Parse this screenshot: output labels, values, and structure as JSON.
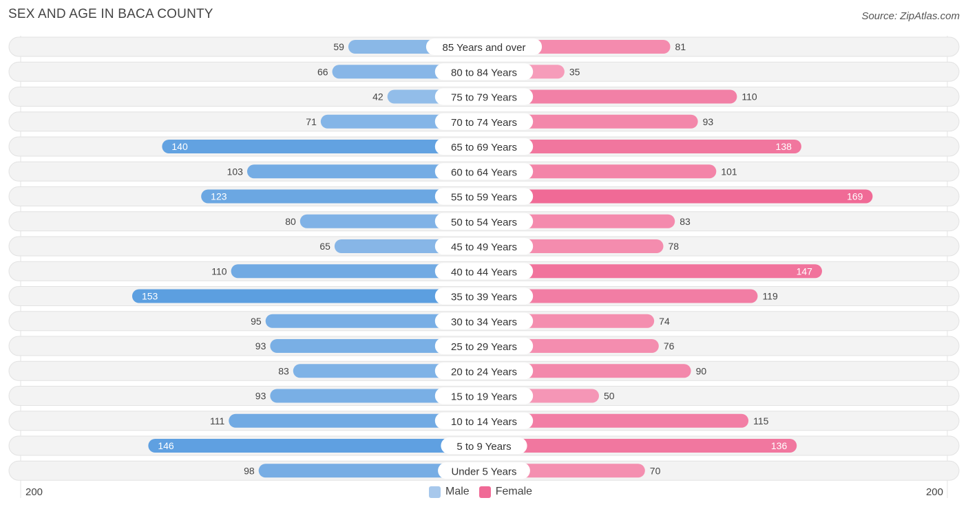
{
  "title": "SEX AND AGE IN BACA COUNTY",
  "source": "Source: ZipAtlas.com",
  "colors": {
    "male": "#5b9ee0",
    "male_light": "#a7c8ec",
    "female": "#f06a96",
    "female_light": "#f7a9c3"
  },
  "legend": {
    "male": "Male",
    "female": "Female"
  },
  "axis": {
    "left_max_label": "200",
    "right_max_label": "200"
  },
  "chart_data": {
    "type": "bar",
    "orientation": "horizontal-diverging",
    "xlim": [
      0,
      200
    ],
    "legend_position": "bottom-center",
    "categories": [
      "85 Years and over",
      "80 to 84 Years",
      "75 to 79 Years",
      "70 to 74 Years",
      "65 to 69 Years",
      "60 to 64 Years",
      "55 to 59 Years",
      "50 to 54 Years",
      "45 to 49 Years",
      "40 to 44 Years",
      "35 to 39 Years",
      "30 to 34 Years",
      "25 to 29 Years",
      "20 to 24 Years",
      "15 to 19 Years",
      "10 to 14 Years",
      "5 to 9 Years",
      "Under 5 Years"
    ],
    "series": [
      {
        "name": "Male",
        "values": [
          59,
          66,
          42,
          71,
          140,
          103,
          123,
          80,
          65,
          110,
          153,
          95,
          93,
          83,
          93,
          111,
          146,
          98
        ]
      },
      {
        "name": "Female",
        "values": [
          81,
          35,
          110,
          93,
          138,
          101,
          169,
          83,
          78,
          147,
          119,
          74,
          76,
          90,
          50,
          115,
          136,
          70
        ]
      }
    ]
  }
}
